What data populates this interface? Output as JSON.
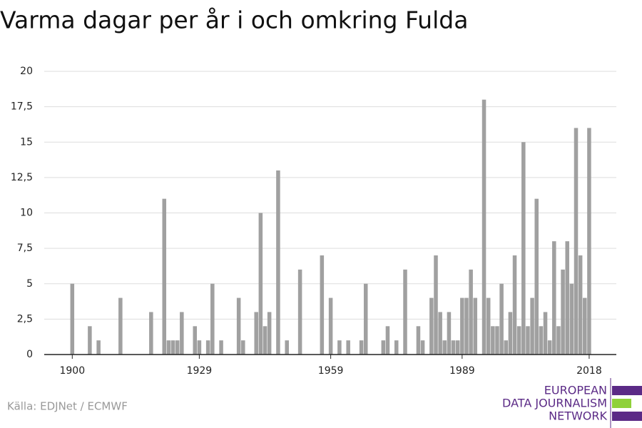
{
  "chart_data": {
    "type": "bar",
    "title": "Varma dagar per år i och omkring Fulda",
    "source": "Källa: EDJNet / ECMWF",
    "logo": [
      "EUROPEAN",
      "DATA JOURNALISM",
      "NETWORK"
    ],
    "color": "#a0a0a0",
    "x": [
      1900,
      1901,
      1902,
      1903,
      1904,
      1905,
      1906,
      1907,
      1908,
      1909,
      1910,
      1911,
      1912,
      1913,
      1914,
      1915,
      1916,
      1917,
      1918,
      1919,
      1920,
      1921,
      1922,
      1923,
      1924,
      1925,
      1926,
      1927,
      1928,
      1929,
      1930,
      1931,
      1932,
      1933,
      1934,
      1935,
      1936,
      1937,
      1938,
      1939,
      1940,
      1941,
      1942,
      1943,
      1944,
      1945,
      1946,
      1947,
      1948,
      1949,
      1950,
      1951,
      1952,
      1953,
      1954,
      1955,
      1956,
      1957,
      1958,
      1959,
      1960,
      1961,
      1962,
      1963,
      1964,
      1965,
      1966,
      1967,
      1968,
      1969,
      1970,
      1971,
      1972,
      1973,
      1974,
      1975,
      1976,
      1977,
      1978,
      1979,
      1980,
      1981,
      1982,
      1983,
      1984,
      1985,
      1986,
      1987,
      1988,
      1989,
      1990,
      1991,
      1992,
      1993,
      1994,
      1995,
      1996,
      1997,
      1998,
      1999,
      2000,
      2001,
      2002,
      2003,
      2004,
      2005,
      2006,
      2007,
      2008,
      2009,
      2010,
      2011,
      2012,
      2013,
      2014,
      2015,
      2016,
      2017,
      2018
    ],
    "values": [
      5,
      0,
      0,
      0,
      2,
      0,
      1,
      0,
      0,
      0,
      0,
      4,
      0,
      0,
      0,
      0,
      0,
      0,
      3,
      0,
      0,
      11,
      1,
      1,
      1,
      3,
      0,
      0,
      2,
      1,
      0,
      1,
      5,
      0,
      1,
      0,
      0,
      0,
      4,
      1,
      0,
      0,
      3,
      10,
      2,
      3,
      0,
      13,
      0,
      1,
      0,
      0,
      6,
      0,
      0,
      0,
      0,
      7,
      0,
      4,
      0,
      1,
      0,
      1,
      0,
      0,
      1,
      5,
      0,
      0,
      0,
      1,
      2,
      0,
      1,
      0,
      6,
      0,
      0,
      2,
      1,
      0,
      4,
      7,
      3,
      1,
      3,
      1,
      1,
      4,
      4,
      6,
      4,
      0,
      18,
      4,
      2,
      2,
      5,
      1,
      3,
      7,
      2,
      15,
      2,
      4,
      11,
      2,
      3,
      1,
      8,
      2,
      6,
      8,
      5,
      16,
      7,
      4,
      16
    ],
    "xlim": [
      1893.6,
      2024.2
    ],
    "xticks": [
      1900,
      1929,
      1959,
      1989,
      2018
    ],
    "ylim": [
      0,
      20
    ],
    "yticks": [
      0,
      {
        "value": 2.5,
        "label": "2,5"
      },
      5,
      {
        "value": 7.5,
        "label": "7,5"
      },
      10,
      {
        "value": 12.5,
        "label": "12,5"
      },
      15,
      {
        "value": 17.5,
        "label": "17,5"
      },
      20
    ],
    "grid": true
  }
}
